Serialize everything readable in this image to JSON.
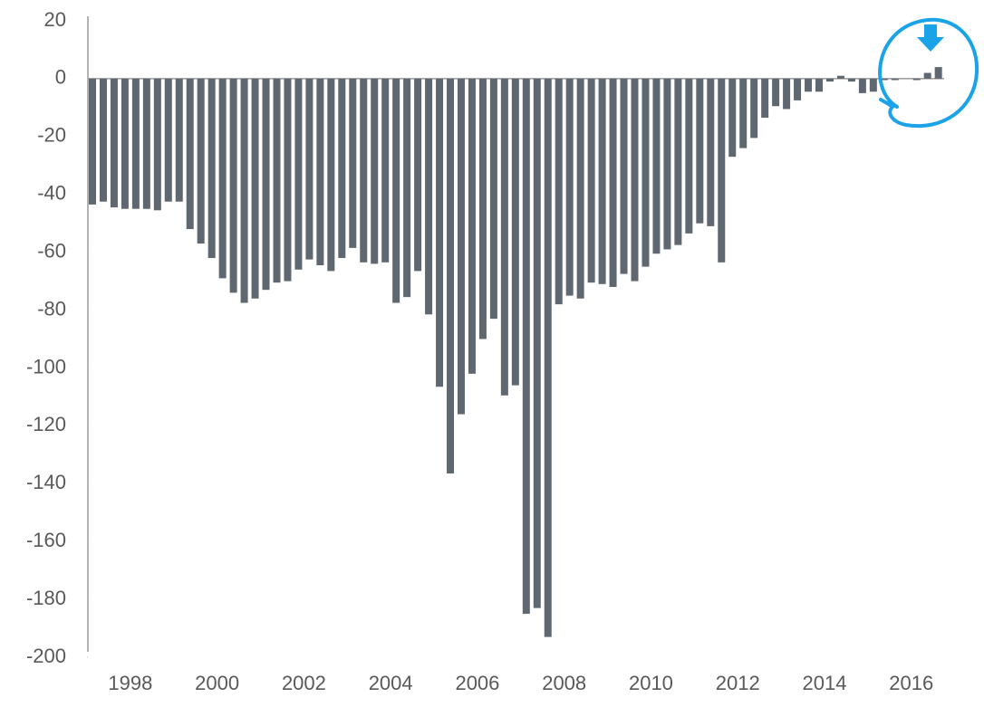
{
  "chart_data": {
    "type": "bar",
    "color": "#5f6770",
    "categories": [
      null,
      null,
      null,
      null,
      "1998",
      null,
      null,
      null,
      null,
      null,
      null,
      null,
      "2000",
      null,
      null,
      null,
      null,
      null,
      null,
      null,
      "2002",
      null,
      null,
      null,
      null,
      null,
      null,
      null,
      "2004",
      null,
      null,
      null,
      null,
      null,
      null,
      null,
      "2006",
      null,
      null,
      null,
      null,
      null,
      null,
      null,
      "2008",
      null,
      null,
      null,
      null,
      null,
      null,
      null,
      "2010",
      null,
      null,
      null,
      null,
      null,
      null,
      null,
      "2012",
      null,
      null,
      null,
      null,
      null,
      null,
      null,
      "2014",
      null,
      null,
      null,
      null,
      null,
      null,
      null,
      "2016",
      null,
      null
    ],
    "values": [
      -43.5,
      -42.5,
      -44.5,
      -45,
      -45,
      -45,
      -45.5,
      -42.5,
      -42.5,
      -52,
      -57,
      -62,
      -69,
      -74,
      -77.5,
      -76,
      -73,
      -70.5,
      -70,
      -66,
      -62.5,
      -64.5,
      -66.5,
      -62,
      -58.5,
      -63.5,
      -64,
      -63.5,
      -77.5,
      -75.5,
      -66.5,
      -81.5,
      -106.5,
      -136.5,
      -116,
      -102,
      -90,
      -83,
      -109.5,
      -106,
      -185,
      -183,
      -193,
      -78,
      -75,
      -76,
      -70.5,
      -71,
      -72,
      -67.5,
      -70,
      -65,
      -60.5,
      -59,
      -57.5,
      -53.5,
      -50,
      -51,
      -63.5,
      -27,
      -24,
      -20.5,
      -13.5,
      -9.5,
      -10.5,
      -7.5,
      -4.5,
      -4.5,
      -1,
      1,
      -1,
      -5,
      -4.5,
      -0.5,
      -0.5,
      0,
      -0.5,
      2,
      4
    ],
    "ylim": [
      -200,
      20
    ],
    "yticks": [
      20,
      0,
      -20,
      -40,
      -60,
      -80,
      -100,
      -120,
      -140,
      -160,
      -180,
      -200
    ]
  }
}
